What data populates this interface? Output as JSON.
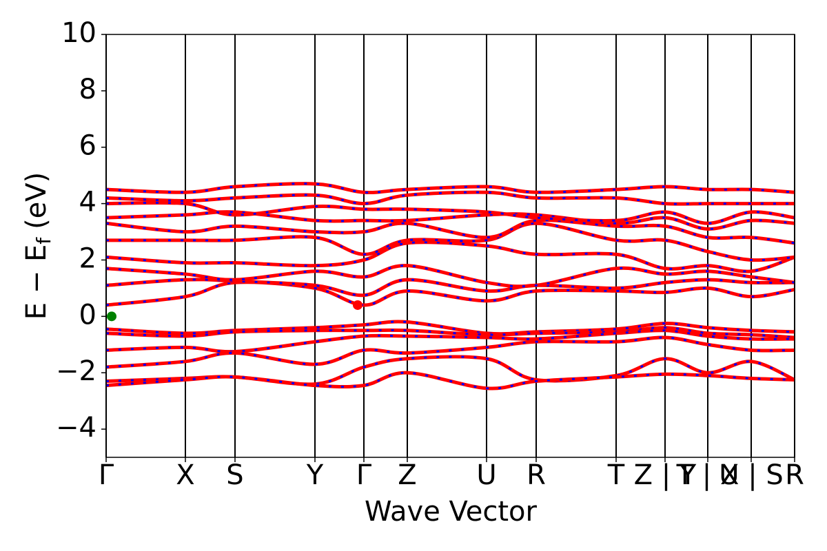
{
  "chart_data": {
    "type": "line",
    "xlabel": "Wave Vector",
    "ylabel": {
      "main": "E − E",
      "sub": "f",
      "unit": "(eV)"
    },
    "x": [
      0,
      1.15,
      1.87,
      3.03,
      3.74,
      4.37,
      5.52,
      6.24,
      7.4,
      8.11,
      8.73,
      9.36,
      9.99
    ],
    "xlim": [
      0,
      9.99
    ],
    "xticks": [
      {
        "value": 0,
        "label": "Γ"
      },
      {
        "value": 1.15,
        "label": "X"
      },
      {
        "value": 1.87,
        "label": "S"
      },
      {
        "value": 3.03,
        "label": "Y"
      },
      {
        "value": 3.74,
        "label": "Γ"
      },
      {
        "value": 4.37,
        "label": "Z"
      },
      {
        "value": 5.52,
        "label": "U"
      },
      {
        "value": 6.24,
        "label": "R"
      },
      {
        "value": 7.4,
        "label": "T"
      },
      {
        "value": 8.11,
        "label": "Z | Y"
      },
      {
        "value": 8.73,
        "label": "T | X"
      },
      {
        "value": 9.36,
        "label": "U | S"
      },
      {
        "value": 9.99,
        "label": "R"
      }
    ],
    "ylim": [
      -5,
      10
    ],
    "yticks": [
      {
        "value": -4,
        "label": "−4"
      },
      {
        "value": -2,
        "label": "−2"
      },
      0,
      2,
      4,
      6,
      8,
      10
    ],
    "color": "#ff0000",
    "dash_color": "#0000ff",
    "series": [
      {
        "values": [
          -0.45,
          -0.6,
          -0.5,
          -0.4,
          -0.3,
          -0.2,
          -0.6,
          -0.55,
          -0.45,
          -0.25,
          -0.4,
          -0.5,
          -0.55
        ]
      },
      {
        "values": [
          -0.6,
          -0.7,
          -0.55,
          -0.5,
          -0.5,
          -0.5,
          -0.65,
          -0.6,
          -0.55,
          -0.4,
          -0.6,
          -0.65,
          -0.75
        ]
      },
      {
        "values": [
          -1.2,
          -1.1,
          -1.25,
          -0.9,
          -0.7,
          -0.7,
          -0.75,
          -0.8,
          -0.6,
          -0.5,
          -0.7,
          -0.8,
          -0.8
        ]
      },
      {
        "values": [
          -1.8,
          -1.6,
          -1.3,
          -1.7,
          -1.2,
          -1.3,
          -1.1,
          -0.9,
          -0.9,
          -0.75,
          -1.0,
          -1.2,
          -1.2
        ]
      },
      {
        "values": [
          -2.3,
          -2.2,
          -2.15,
          -2.4,
          -1.8,
          -1.5,
          -1.5,
          -2.25,
          -2.1,
          -1.5,
          -2.0,
          -1.6,
          -2.25
        ]
      },
      {
        "values": [
          -2.45,
          -2.25,
          -2.15,
          -2.45,
          -2.45,
          -2.0,
          -2.55,
          -2.3,
          -2.15,
          -2.05,
          -2.1,
          -2.2,
          -2.25
        ]
      },
      {
        "values": [
          0.4,
          0.7,
          1.2,
          1.0,
          0.4,
          0.9,
          0.55,
          0.9,
          0.9,
          0.85,
          1.0,
          0.7,
          0.95
        ]
      },
      {
        "values": [
          1.1,
          1.3,
          1.25,
          1.1,
          0.75,
          1.3,
          0.9,
          1.1,
          1.0,
          1.2,
          1.3,
          1.2,
          1.2
        ]
      },
      {
        "values": [
          1.7,
          1.5,
          1.3,
          1.6,
          1.4,
          1.8,
          1.2,
          1.1,
          1.7,
          1.5,
          1.6,
          1.4,
          1.2
        ]
      },
      {
        "values": [
          2.1,
          1.9,
          1.9,
          1.8,
          2.0,
          2.6,
          2.5,
          2.2,
          2.2,
          1.7,
          1.8,
          1.6,
          2.1
        ]
      },
      {
        "values": [
          2.7,
          2.7,
          2.7,
          2.8,
          2.2,
          2.7,
          2.7,
          3.3,
          2.7,
          2.7,
          2.3,
          2.0,
          2.1
        ]
      },
      {
        "values": [
          3.3,
          3.0,
          3.2,
          3.0,
          3.0,
          3.3,
          2.8,
          3.4,
          3.2,
          3.2,
          2.8,
          2.8,
          2.6
        ]
      },
      {
        "values": [
          3.5,
          3.6,
          3.7,
          3.4,
          3.4,
          3.4,
          3.6,
          3.6,
          3.3,
          3.5,
          3.1,
          3.4,
          3.3
        ]
      },
      {
        "values": [
          4.0,
          4.0,
          3.6,
          3.9,
          3.8,
          3.8,
          3.7,
          3.5,
          3.4,
          3.7,
          3.3,
          3.7,
          3.5
        ]
      },
      {
        "values": [
          4.2,
          4.1,
          4.2,
          4.3,
          4.0,
          4.3,
          4.4,
          4.2,
          4.2,
          4.0,
          4.0,
          4.0,
          4.0
        ]
      },
      {
        "values": [
          4.5,
          4.4,
          4.6,
          4.7,
          4.4,
          4.5,
          4.6,
          4.4,
          4.5,
          4.6,
          4.5,
          4.5,
          4.4
        ]
      }
    ],
    "points": [
      {
        "x": 0.08,
        "y": 0,
        "color": "#008000"
      },
      {
        "x": 3.65,
        "y": 0.4,
        "color": "#ff0000"
      }
    ]
  }
}
